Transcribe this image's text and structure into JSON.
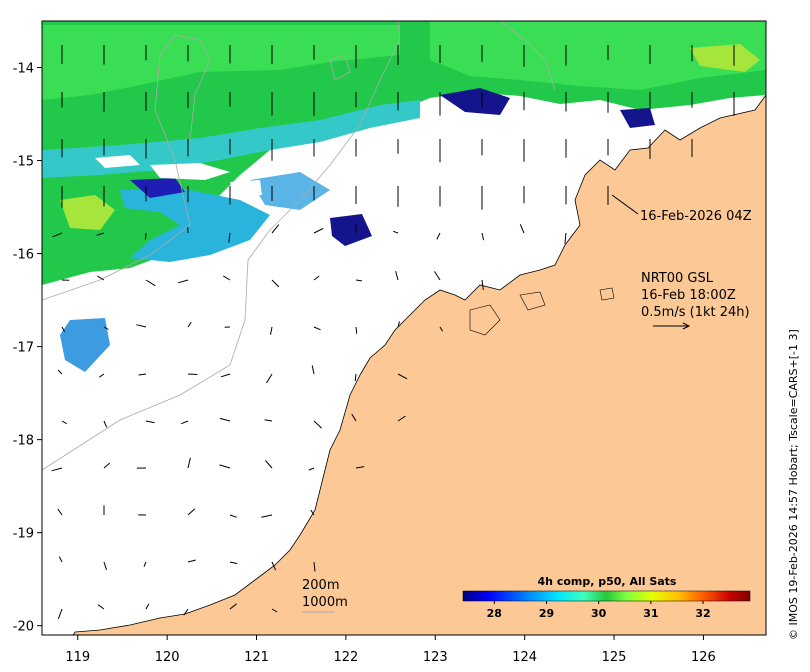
{
  "map": {
    "lon_range": [
      118.6,
      126.7
    ],
    "lat_range": [
      -20.1,
      -13.5
    ],
    "x_ticks": [
      "119",
      "120",
      "121",
      "122",
      "123",
      "124",
      "125",
      "126"
    ],
    "y_ticks": [
      "-14",
      "-15",
      "-16",
      "-17",
      "-18",
      "-19",
      "-20"
    ],
    "colors": {
      "land": "#fcc896",
      "ocean": "#ffffff",
      "coast": "#000000",
      "contour": "#aaaaaa"
    }
  },
  "annotations": {
    "image_time": "16-Feb-2026 04Z",
    "current_product": "NRT00 GSL",
    "current_time": "16-Feb 18:00Z",
    "vector_scale": "0.5m/s (1kt 24h)",
    "depth_200": "200m",
    "depth_1000": "1000m"
  },
  "colorbar": {
    "title": "4h comp, p50, All Sats",
    "ticks": [
      "28",
      "29",
      "30",
      "31",
      "32"
    ],
    "range": [
      27.4,
      32.9
    ],
    "colors": [
      "#00007f",
      "#0000ff",
      "#0080ff",
      "#00e5ff",
      "#3fffbf",
      "#26c83c",
      "#7fff3f",
      "#e6ff00",
      "#ffbf00",
      "#ff5a00",
      "#c80000",
      "#7f0000"
    ]
  },
  "credit": "© IMOS 19-Feb-2026 14:57 Hobart; Tscale=CARS+[-1 3]"
}
